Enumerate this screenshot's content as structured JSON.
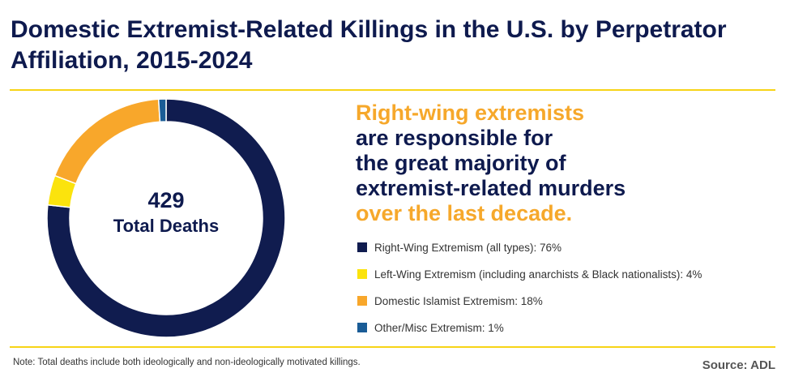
{
  "header": {
    "title": "Domestic Extremist-Related Killings in the U.S. by Perpetrator Affiliation, 2015-2024"
  },
  "donut_center": {
    "total": "429",
    "label": "Total Deaths"
  },
  "headline": {
    "line1": "Right-wing extremists",
    "line2": "are responsible for",
    "line3": "the great majority of",
    "line4": "extremist-related murders",
    "line5": "over the last decade."
  },
  "footer": {
    "note": "Note: Total deaths include both ideologically and non-ideologically motivated killings.",
    "source": "Source: ADL"
  },
  "colors": {
    "navy": "#0e1a4e",
    "orange": "#f6a82b",
    "yellow": "#f7d417"
  },
  "chart_data": {
    "type": "pie",
    "donut": true,
    "total": 429,
    "title": "Domestic Extremist-Related Killings in the U.S. by Perpetrator Affiliation, 2015-2024",
    "legend_position": "right",
    "series": [
      {
        "name": "Right-Wing Extremism (all types): 76%",
        "value": 76,
        "color": "#101c4f"
      },
      {
        "name": "Left-Wing Extremism (including anarchists & Black nationalists): 4%",
        "value": 4,
        "color": "#fbe30d"
      },
      {
        "name": "Domestic Islamist Extremism: 18%",
        "value": 18,
        "color": "#f8a72b"
      },
      {
        "name": "Other/Misc Extremism: 1%",
        "value": 1,
        "color": "#1a5c96"
      }
    ]
  }
}
